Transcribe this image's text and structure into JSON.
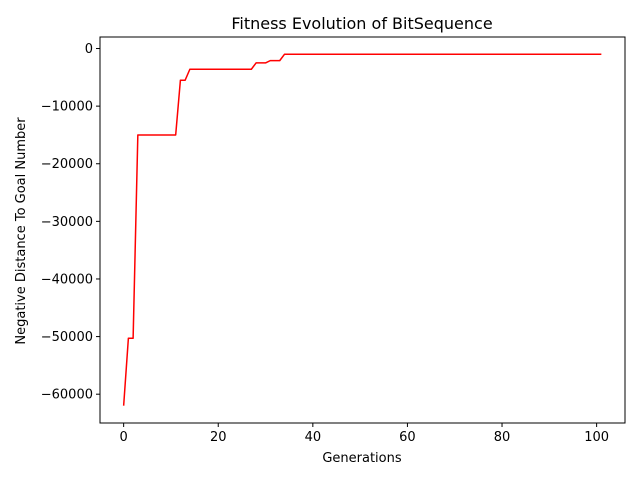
{
  "chart_data": {
    "type": "line",
    "title": "Fitness Evolution of BitSequence",
    "xlabel": "Generations",
    "ylabel": "Negative Distance To Goal Number",
    "xlim": [
      -5,
      106
    ],
    "ylim": [
      -65000,
      2000
    ],
    "xticks": [
      0,
      20,
      40,
      60,
      80,
      100
    ],
    "yticks": [
      -60000,
      -50000,
      -40000,
      -30000,
      -20000,
      -10000,
      0
    ],
    "xtick_labels": [
      "0",
      "20",
      "40",
      "60",
      "80",
      "100"
    ],
    "ytick_labels": [
      "−60000",
      "−50000",
      "−40000",
      "−30000",
      "−20000",
      "−10000",
      "0"
    ],
    "grid": false,
    "series": [
      {
        "color": "#ff0000",
        "x": [
          0,
          1,
          2,
          3,
          4,
          5,
          6,
          7,
          8,
          9,
          10,
          11,
          12,
          13,
          14,
          15,
          16,
          17,
          18,
          19,
          20,
          21,
          22,
          23,
          24,
          25,
          26,
          27,
          28,
          29,
          30,
          31,
          32,
          33,
          34,
          35,
          40,
          50,
          60,
          70,
          80,
          90,
          100,
          101
        ],
        "y": [
          -62000,
          -50300,
          -50300,
          -15000,
          -15000,
          -15000,
          -15000,
          -15000,
          -15000,
          -15000,
          -15000,
          -15000,
          -5500,
          -5500,
          -3600,
          -3600,
          -3600,
          -3600,
          -3600,
          -3600,
          -3600,
          -3600,
          -3600,
          -3600,
          -3600,
          -3600,
          -3600,
          -3600,
          -2500,
          -2500,
          -2500,
          -2100,
          -2100,
          -2100,
          -1000,
          -1000,
          -1000,
          -1000,
          -1000,
          -1000,
          -1000,
          -1000,
          -1000,
          -1000
        ]
      }
    ]
  }
}
